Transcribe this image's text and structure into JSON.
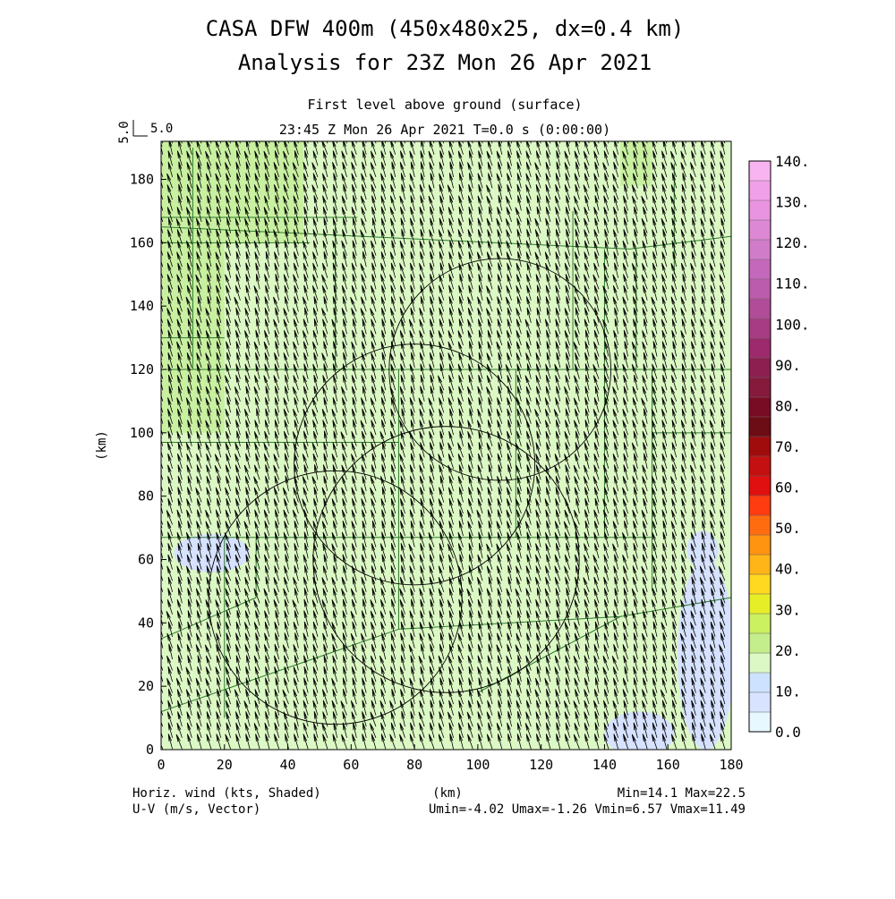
{
  "title_line1": "CASA DFW 400m (450x480x25, dx=0.4 km)",
  "title_line2": "Analysis for 23Z Mon 26 Apr 2021",
  "subtitle1": "First level above ground (surface)",
  "subtitle2": "23:45 Z Mon 26 Apr 2021   T=0.0 s (0:00:00)",
  "vector_ref": {
    "value_text": "5.0",
    "side_text": "5.0"
  },
  "axes": {
    "xlabel": "(km)",
    "ylabel": "(km)",
    "xlim": [
      0,
      180
    ],
    "ylim": [
      0,
      192
    ],
    "xticks": [
      "0",
      "20",
      "40",
      "60",
      "80",
      "100",
      "120",
      "140",
      "160",
      "180"
    ],
    "yticks": [
      "0",
      "20",
      "40",
      "60",
      "80",
      "100",
      "120",
      "140",
      "160",
      "180"
    ]
  },
  "footer": {
    "left1": "Horiz. wind (kts, Shaded)",
    "left2": "U-V (m/s, Vector)",
    "center": "(km)",
    "right1": "Min=14.1 Max=22.5",
    "right2": "Umin=-4.02 Umax=-1.26 Vmin=6.57 Vmax=11.49"
  },
  "colorbar": {
    "labels": [
      "0.0",
      "10.",
      "20.",
      "30.",
      "40.",
      "50.",
      "60.",
      "70.",
      "80.",
      "90.",
      "100.",
      "110.",
      "120.",
      "130.",
      "140."
    ],
    "colors": [
      "#e8f8ff",
      "#d8e4ff",
      "#cce2ff",
      "#dcf8c4",
      "#c4ee8c",
      "#cbf060",
      "#e6ee28",
      "#ffd820",
      "#ffb418",
      "#ff9410",
      "#ff6c10",
      "#ff3c10",
      "#e01010",
      "#c41010",
      "#a00c0c",
      "#6c0c14",
      "#780c24",
      "#861a3c",
      "#8c1e50",
      "#9c2a6c",
      "#a83c84",
      "#b04c98",
      "#bc5cac",
      "#c468bc",
      "#d07cc8",
      "#dc88d4",
      "#e894e0",
      "#f0a0e8",
      "#f8b4f0"
    ]
  },
  "chart_data": {
    "type": "heatmap",
    "field": "Horiz. wind (kts, Shaded)",
    "vectors": "U-V (m/s, Vector)",
    "xlim": [
      0,
      180
    ],
    "ylim": [
      0,
      192
    ],
    "min": 14.1,
    "max": 22.5,
    "umin": -4.02,
    "umax": -1.26,
    "vmin": 6.57,
    "vmax": 11.49,
    "colors": {
      "base": "#dcf8c4",
      "high": "#c8f0a0",
      "low": "#d6e2ff",
      "vector": "#000000",
      "boundary": "#2c7a2c",
      "range_ring": "#000000"
    },
    "high_regions_km": [
      {
        "x": [
          0,
          45
        ],
        "y": [
          160,
          192
        ]
      },
      {
        "x": [
          0,
          20
        ],
        "y": [
          100,
          160
        ]
      },
      {
        "x": [
          145,
          155
        ],
        "y": [
          178,
          192
        ]
      }
    ],
    "low_regions_km": [
      {
        "cx": 16,
        "cy": 62,
        "rx": 12,
        "ry": 6
      },
      {
        "cx": 171,
        "cy": 63,
        "rx": 5,
        "ry": 6
      },
      {
        "cx": 172,
        "cy": 30,
        "rx": 9,
        "ry": 30
      },
      {
        "cx": 151,
        "cy": 5,
        "rx": 11,
        "ry": 7
      }
    ],
    "range_rings_km": [
      {
        "cx": 107,
        "cy": 120,
        "r": 35
      },
      {
        "cx": 80,
        "cy": 90,
        "r": 38
      },
      {
        "cx": 90,
        "cy": 60,
        "r": 42
      },
      {
        "cx": 55,
        "cy": 48,
        "r": 40
      }
    ]
  }
}
